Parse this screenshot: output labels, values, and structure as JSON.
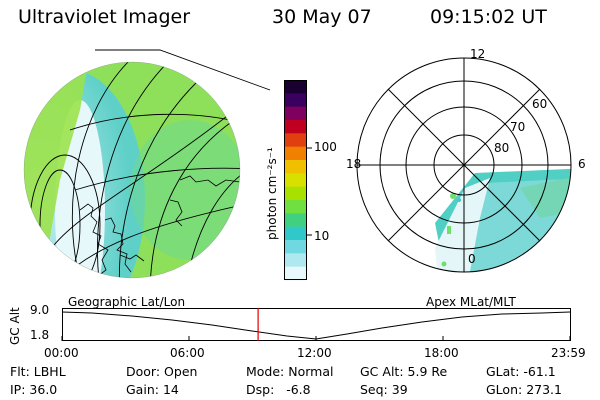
{
  "header": {
    "title": "Ultraviolet Imager",
    "date": "30 May 07",
    "time": "09:15:02 UT"
  },
  "colorbar": {
    "units_label": "photon cm⁻²s⁻¹",
    "tick_labels": [
      "100",
      "10"
    ],
    "colors": [
      "#1a0030",
      "#3a0060",
      "#800060",
      "#c00020",
      "#e04010",
      "#f08000",
      "#f0c000",
      "#d8e000",
      "#a8e000",
      "#70e040",
      "#40d080",
      "#30c8c8",
      "#70d8e0",
      "#b0e8f0",
      "#e8f8fb"
    ]
  },
  "left_map": {
    "caption": "Geographic Lat/Lon",
    "colors": {
      "fill": "#8ee05a",
      "teal": "#49c9c0",
      "light": "#d8f4f8"
    }
  },
  "polar_plot": {
    "caption": "Apex MLat/MLT",
    "mlt_labels": {
      "top": "12",
      "left": "18",
      "right": "6",
      "bottom": "0"
    },
    "mlat_labels": [
      "60",
      "70",
      "80"
    ]
  },
  "timeline": {
    "axis_label": "GC Alt",
    "y_ticks": [
      "9.0",
      "1.8"
    ],
    "x_ticks": [
      "00:00",
      "06:00",
      "12:00",
      "18:00",
      "23:59"
    ],
    "current_time_fraction": 0.386,
    "marker_color": "#e00000"
  },
  "status": {
    "row1": [
      {
        "key": "Flt:",
        "value": "LBHL"
      },
      {
        "key": "Door:",
        "value": "Open"
      },
      {
        "key": "Mode:",
        "value": "Normal"
      },
      {
        "key": "GC Alt:",
        "value": "5.9 Re"
      },
      {
        "key": "GLat:",
        "value": "-61.1"
      }
    ],
    "row2": [
      {
        "key": "IP:",
        "value": "36.0"
      },
      {
        "key": "Gain:",
        "value": "14"
      },
      {
        "key": "Dsp:",
        "value": "-6.8"
      },
      {
        "key": "Seq:",
        "value": "39"
      },
      {
        "key": "GLon:",
        "value": "273.1"
      }
    ]
  }
}
